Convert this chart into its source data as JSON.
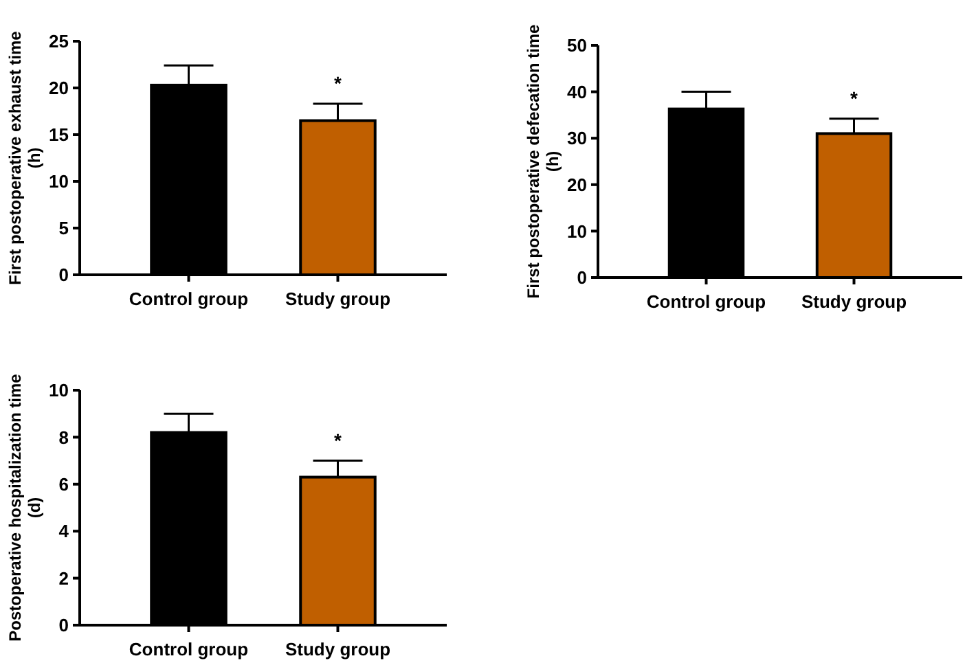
{
  "chart_data": [
    {
      "type": "bar",
      "ylabel": "First postoperative exhaust time\n(h)",
      "categories": [
        "Control group",
        "Study group"
      ],
      "values": [
        20.3,
        16.5
      ],
      "errors": [
        2.1,
        1.8
      ],
      "colors": [
        "#000000",
        "#c05f00"
      ],
      "ylim": [
        0,
        25
      ],
      "yticks": [
        0,
        5,
        10,
        15,
        20,
        25
      ],
      "grid": false,
      "annotations": [
        "*"
      ]
    },
    {
      "type": "bar",
      "ylabel": "First postoperative defecation time\n(h)",
      "categories": [
        "Control group",
        "Study group"
      ],
      "values": [
        36.3,
        31
      ],
      "errors": [
        3.7,
        3.2
      ],
      "colors": [
        "#000000",
        "#c05f00"
      ],
      "ylim": [
        0,
        50
      ],
      "yticks": [
        0,
        10,
        20,
        30,
        40,
        50
      ],
      "grid": false,
      "annotations": [
        "*"
      ]
    },
    {
      "type": "bar",
      "ylabel": "Postoperative hospitalization time\n(d)",
      "categories": [
        "Control group",
        "Study group"
      ],
      "values": [
        8.2,
        6.3
      ],
      "errors": [
        0.8,
        0.7
      ],
      "colors": [
        "#000000",
        "#c05f00"
      ],
      "ylim": [
        0,
        10
      ],
      "yticks": [
        0,
        2,
        4,
        6,
        8,
        10
      ],
      "grid": false,
      "annotations": [
        "*"
      ]
    }
  ]
}
